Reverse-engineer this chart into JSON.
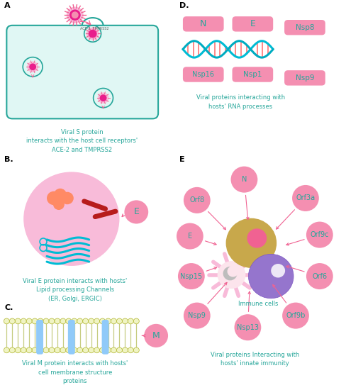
{
  "pink": "#F06292",
  "pink_light": "#F48FB1",
  "teal": "#26A69A",
  "teal_text": "#26A69A",
  "bg_cell": "#E0F7F4",
  "text_A": "Viral S protein\ninteracts with the host cell receptors'\nACE-2 and TMPRSS2",
  "text_B": "Viral E protein interacts with hosts'\nLipid processing Channels\n(ER, Golgi, ERGIC)",
  "text_C": "Viral M protein interacts with hosts'\ncell membrane structure\nproteins",
  "text_D": "Viral proteins interacting with\nhosts' RNA processes",
  "text_E": "Viral proteins Interacting with\nhosts' innate immunity",
  "immune_cells_label": "Immune cells"
}
